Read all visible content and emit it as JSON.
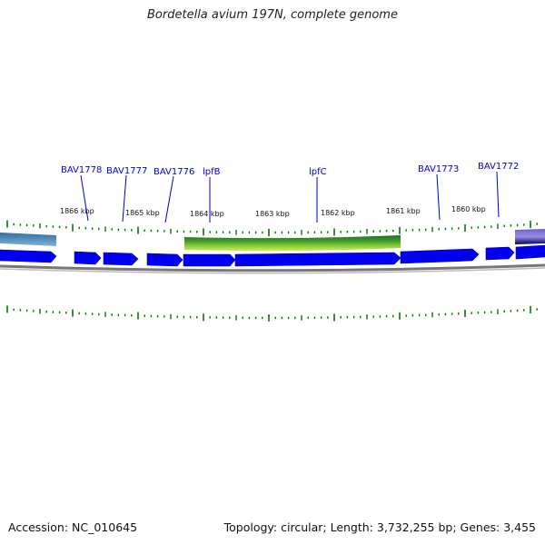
{
  "title": "Bordetella avium 197N, complete genome",
  "footer": {
    "accession": "Accession: NC_010645",
    "summary": "Topology: circular; Length: 3,732,255 bp; Genes: 3,455"
  },
  "kbp_labels": [
    "1866 kbp",
    "1865 kbp",
    "1864 kbp",
    "1863 kbp",
    "1862 kbp",
    "1861 kbp",
    "1860 kbp"
  ],
  "gene_labels": [
    "BAV1778",
    "BAV1777",
    "BAV1776",
    "lpfB",
    "lpfC",
    "BAV1773",
    "BAV1772"
  ],
  "colors": {
    "cds": "#0000ee",
    "cds_dark": "#000080",
    "tick": "#007700",
    "backbone": "#888888",
    "feature_green": "#2e8b2e",
    "feature_lime": "#9acd32",
    "feature_blue": "#4682b4",
    "feature_purple": "#7a6fd0"
  }
}
